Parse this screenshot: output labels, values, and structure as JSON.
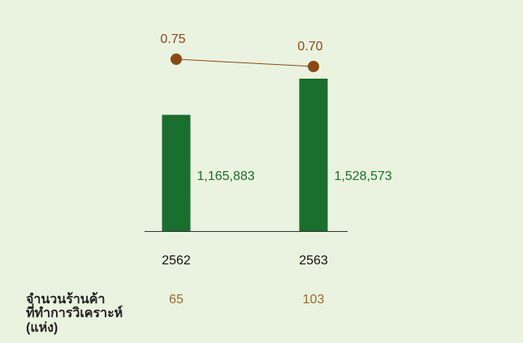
{
  "chart_data": {
    "type": "bar",
    "categories": [
      "2562",
      "2563"
    ],
    "values": [
      1165883,
      1528573
    ],
    "value_labels": [
      "1,165,883",
      "1,528,573"
    ],
    "color": "#1a6e2e",
    "line": {
      "values": [
        0.75,
        0.7
      ],
      "value_labels": [
        "0.75",
        "0.70"
      ],
      "color": "#8a4a12"
    }
  },
  "footer_row": {
    "label_lines": [
      "จำนวนร้านค้า",
      "ที่ทำการวิเคราะห์",
      "(แห่ง)"
    ],
    "values": [
      65,
      103
    ],
    "color": "#9a6a2e"
  }
}
